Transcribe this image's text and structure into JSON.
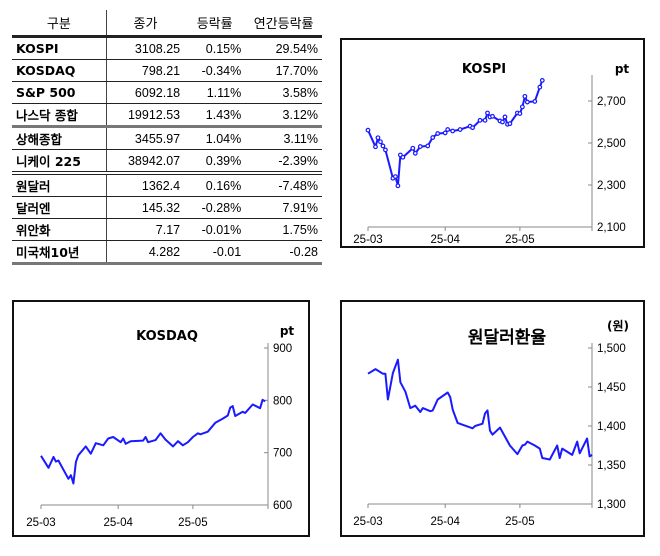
{
  "table": {
    "headers": [
      "구분",
      "종가",
      "등락률",
      "연간등락률"
    ],
    "rows": [
      [
        "KOSPI",
        "3108.25",
        "0.15%",
        "29.54%"
      ],
      [
        "KOSDAQ",
        "798.21",
        "-0.34%",
        "17.70%"
      ],
      [
        "S&P 500",
        "6092.18",
        "1.11%",
        "3.58%"
      ],
      [
        "나스닥 종합",
        "19912.53",
        "1.43%",
        "3.12%"
      ],
      [
        "상해종합",
        "3455.97",
        "1.04%",
        "3.11%"
      ],
      [
        "니케이 225",
        "38942.07",
        "0.39%",
        "-2.39%"
      ],
      [
        "원달러",
        "1362.4",
        "0.16%",
        "-7.48%"
      ],
      [
        "달러엔",
        "145.32",
        "-0.28%",
        "7.91%"
      ],
      [
        "위안화",
        "7.17",
        "-0.01%",
        "1.75%"
      ],
      [
        "미국채10년",
        "4.282",
        "-0.01",
        "-0.28"
      ]
    ]
  },
  "chart_data": [
    {
      "type": "line",
      "title": "KOSPI",
      "ylabel": "pt",
      "color": "#1a1aff",
      "markers": true,
      "x_ticks": [
        "25-03",
        "25-04",
        "25-05"
      ],
      "xlim": [
        "2025-03-01",
        "2025-05-30"
      ],
      "ylim": [
        2100,
        2800
      ],
      "y_ticks": [
        2100,
        2300,
        2500,
        2700
      ],
      "y_tick_labels": [
        "2,100",
        "2,300",
        "2,500",
        "2,700"
      ],
      "points": [
        [
          "2025-03-01",
          2561
        ],
        [
          "2025-03-04",
          2482
        ],
        [
          "2025-03-05",
          2525
        ],
        [
          "2025-03-06",
          2506
        ],
        [
          "2025-03-07",
          2486
        ],
        [
          "2025-03-08",
          2467
        ],
        [
          "2025-03-11",
          2332
        ],
        [
          "2025-03-12",
          2340
        ],
        [
          "2025-03-13",
          2296
        ],
        [
          "2025-03-14",
          2443
        ],
        [
          "2025-03-15",
          2432
        ],
        [
          "2025-03-19",
          2475
        ],
        [
          "2025-03-20",
          2451
        ],
        [
          "2025-03-22",
          2483
        ],
        [
          "2025-03-25",
          2486
        ],
        [
          "2025-03-27",
          2526
        ],
        [
          "2025-03-29",
          2545
        ],
        [
          "2025-04-01",
          2548
        ],
        [
          "2025-04-02",
          2564
        ],
        [
          "2025-04-04",
          2557
        ],
        [
          "2025-04-07",
          2564
        ],
        [
          "2025-04-11",
          2580
        ],
        [
          "2025-04-12",
          2573
        ],
        [
          "2025-04-15",
          2608
        ],
        [
          "2025-04-17",
          2608
        ],
        [
          "2025-04-18",
          2643
        ],
        [
          "2025-04-19",
          2624
        ],
        [
          "2025-04-20",
          2627
        ],
        [
          "2025-04-23",
          2605
        ],
        [
          "2025-04-24",
          2600
        ],
        [
          "2025-04-25",
          2624
        ],
        [
          "2025-04-26",
          2589
        ],
        [
          "2025-04-27",
          2592
        ],
        [
          "2025-04-30",
          2643
        ],
        [
          "2025-05-01",
          2640
        ],
        [
          "2025-05-02",
          2672
        ],
        [
          "2025-05-03",
          2722
        ],
        [
          "2025-05-04",
          2695
        ],
        [
          "2025-05-07",
          2698
        ],
        [
          "2025-05-09",
          2766
        ],
        [
          "2025-05-10",
          2798
        ]
      ]
    },
    {
      "type": "line",
      "title": "KOSDAQ",
      "ylabel": "pt",
      "color": "#1a1aff",
      "markers": false,
      "x_ticks": [
        "25-03",
        "25-04",
        "25-05"
      ],
      "xlim": [
        "2025-03-01",
        "2025-05-30"
      ],
      "ylim": [
        600,
        900
      ],
      "y_ticks": [
        600,
        700,
        800,
        900
      ],
      "y_tick_labels": [
        "600",
        "700",
        "800",
        "900"
      ],
      "points": [
        [
          "2025-03-01",
          694
        ],
        [
          "2025-03-04",
          671
        ],
        [
          "2025-03-06",
          692
        ],
        [
          "2025-03-07",
          683
        ],
        [
          "2025-03-08",
          685
        ],
        [
          "2025-03-12",
          650
        ],
        [
          "2025-03-13",
          657
        ],
        [
          "2025-03-14",
          641
        ],
        [
          "2025-03-15",
          682
        ],
        [
          "2025-03-16",
          695
        ],
        [
          "2025-03-19",
          712
        ],
        [
          "2025-03-21",
          698
        ],
        [
          "2025-03-23",
          718
        ],
        [
          "2025-03-26",
          714
        ],
        [
          "2025-03-28",
          727
        ],
        [
          "2025-03-30",
          730
        ],
        [
          "2025-04-02",
          720
        ],
        [
          "2025-04-03",
          727
        ],
        [
          "2025-04-04",
          717
        ],
        [
          "2025-04-06",
          722
        ],
        [
          "2025-04-11",
          723
        ],
        [
          "2025-04-12",
          730
        ],
        [
          "2025-04-13",
          720
        ],
        [
          "2025-04-16",
          724
        ],
        [
          "2025-04-18",
          737
        ],
        [
          "2025-04-20",
          725
        ],
        [
          "2025-04-23",
          712
        ],
        [
          "2025-04-25",
          722
        ],
        [
          "2025-04-27",
          714
        ],
        [
          "2025-04-29",
          720
        ],
        [
          "2025-05-01",
          730
        ],
        [
          "2025-05-03",
          737
        ],
        [
          "2025-05-04",
          735
        ],
        [
          "2025-05-07",
          740
        ],
        [
          "2025-05-10",
          757
        ],
        [
          "2025-05-13",
          765
        ],
        [
          "2025-05-15",
          771
        ],
        [
          "2025-05-16",
          786
        ],
        [
          "2025-05-17",
          789
        ],
        [
          "2025-05-18",
          770
        ],
        [
          "2025-05-21",
          778
        ],
        [
          "2025-05-22",
          776
        ],
        [
          "2025-05-25",
          792
        ],
        [
          "2025-05-28",
          785
        ],
        [
          "2025-05-29",
          801
        ],
        [
          "2025-05-30",
          798
        ]
      ]
    },
    {
      "type": "line",
      "title": "원달러환율",
      "ylabel": "(원)",
      "color": "#1a1aff",
      "markers": false,
      "x_ticks": [
        "25-03",
        "25-04",
        "25-05"
      ],
      "xlim": [
        "2025-03-01",
        "2025-05-30"
      ],
      "ylim": [
        1300,
        1500
      ],
      "y_ticks": [
        1300,
        1350,
        1400,
        1450,
        1500
      ],
      "y_tick_labels": [
        "1,300",
        "1,350",
        "1,400",
        "1,450",
        "1,500"
      ],
      "points": [
        [
          "2025-03-01",
          1467
        ],
        [
          "2025-03-04",
          1473
        ],
        [
          "2025-03-07",
          1467
        ],
        [
          "2025-03-08",
          1467
        ],
        [
          "2025-03-09",
          1434
        ],
        [
          "2025-03-11",
          1468
        ],
        [
          "2025-03-13",
          1485
        ],
        [
          "2025-03-14",
          1456
        ],
        [
          "2025-03-16",
          1444
        ],
        [
          "2025-03-18",
          1423
        ],
        [
          "2025-03-20",
          1426
        ],
        [
          "2025-03-22",
          1418
        ],
        [
          "2025-03-23",
          1423
        ],
        [
          "2025-03-26",
          1419
        ],
        [
          "2025-03-27",
          1420
        ],
        [
          "2025-03-29",
          1434
        ],
        [
          "2025-04-02",
          1443
        ],
        [
          "2025-04-03",
          1437
        ],
        [
          "2025-04-04",
          1421
        ],
        [
          "2025-04-06",
          1404
        ],
        [
          "2025-04-12",
          1397
        ],
        [
          "2025-04-13",
          1400
        ],
        [
          "2025-04-16",
          1403
        ],
        [
          "2025-04-17",
          1416
        ],
        [
          "2025-04-18",
          1420
        ],
        [
          "2025-04-19",
          1394
        ],
        [
          "2025-04-20",
          1389
        ],
        [
          "2025-04-23",
          1398
        ],
        [
          "2025-04-27",
          1375
        ],
        [
          "2025-04-30",
          1364
        ],
        [
          "2025-05-02",
          1375
        ],
        [
          "2025-05-03",
          1376
        ],
        [
          "2025-05-04",
          1380
        ],
        [
          "2025-05-07",
          1375
        ],
        [
          "2025-05-09",
          1371
        ],
        [
          "2025-05-10",
          1359
        ],
        [
          "2025-05-13",
          1357
        ],
        [
          "2025-05-16",
          1375
        ],
        [
          "2025-05-17",
          1359
        ],
        [
          "2025-05-18",
          1371
        ],
        [
          "2025-05-22",
          1363
        ],
        [
          "2025-05-24",
          1380
        ],
        [
          "2025-05-25",
          1365
        ],
        [
          "2025-05-28",
          1384
        ],
        [
          "2025-05-29",
          1361
        ],
        [
          "2025-05-30",
          1363
        ]
      ]
    }
  ]
}
